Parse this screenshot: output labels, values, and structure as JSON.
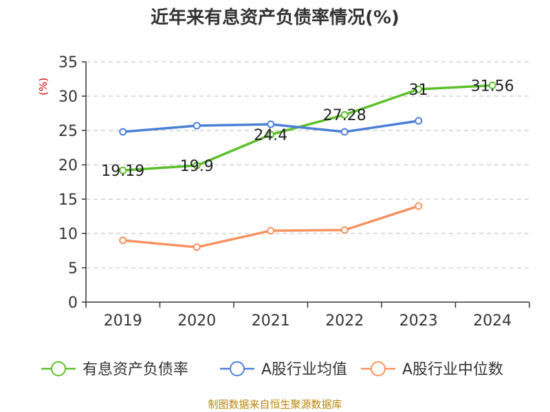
{
  "chart_data": {
    "type": "line",
    "title": "近年来有息资产负债率情况(%)",
    "ylabel": "(%)",
    "xlabel": "",
    "categories": [
      "2019",
      "2020",
      "2021",
      "2022",
      "2023",
      "2024"
    ],
    "ylim": [
      0,
      35
    ],
    "yticks": [
      0,
      5,
      10,
      15,
      20,
      25,
      30,
      35
    ],
    "grid": true,
    "legend_position": "bottom",
    "series": [
      {
        "name": "有息资产负债率",
        "color": "#5cbf2a",
        "values": [
          19.19,
          19.9,
          24.4,
          27.28,
          31,
          31.56
        ],
        "labels": [
          "19.19",
          "19.9",
          "24.4",
          "27.28",
          "31",
          "31.56"
        ]
      },
      {
        "name": "A股行业均值",
        "color": "#4a7fd6",
        "values": [
          24.8,
          25.7,
          25.9,
          24.8,
          26.4,
          null
        ]
      },
      {
        "name": "A股行业中位数",
        "color": "#f5925f",
        "values": [
          9.0,
          8.0,
          10.4,
          10.5,
          14.0,
          null
        ]
      }
    ],
    "source": "制图数据来自恒生聚源数据库"
  }
}
